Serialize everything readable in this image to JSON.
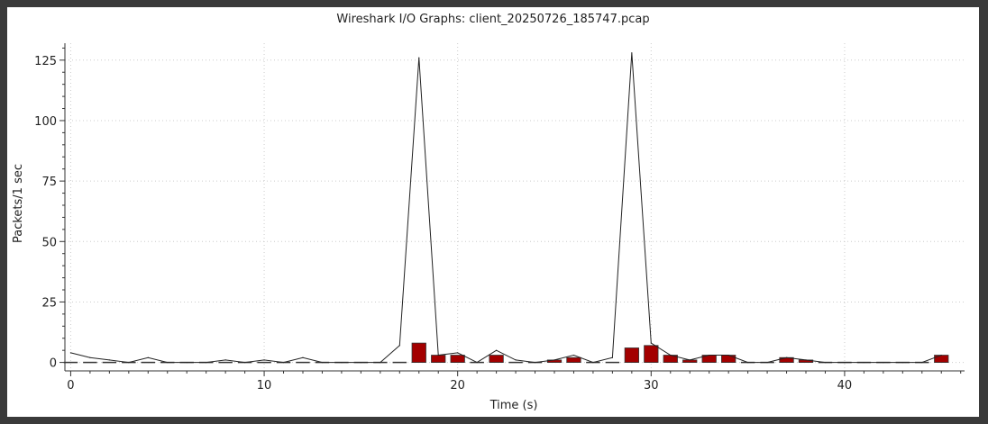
{
  "window": {
    "title": "Wireshark I/O Graphs: client_20250726_185747.pcap"
  },
  "chart_data": {
    "type": "line",
    "title": "Wireshark I/O Graphs: client_20250726_185747.pcap",
    "xlabel": "Time (s)",
    "ylabel": "Packets/1 sec",
    "xlim": [
      -0.3,
      46.2
    ],
    "ylim": [
      -3.5,
      132
    ],
    "x_ticks": [
      0,
      10,
      20,
      30,
      40
    ],
    "y_ticks": [
      0,
      25,
      50,
      75,
      100,
      125
    ],
    "grid": true,
    "legend": "none",
    "series": [
      {
        "type": "line",
        "color": "#222222",
        "x": [
          0,
          1,
          2,
          3,
          4,
          5,
          6,
          7,
          8,
          9,
          10,
          11,
          12,
          13,
          14,
          15,
          16,
          17,
          18,
          19,
          20,
          21,
          22,
          23,
          24,
          25,
          26,
          27,
          28,
          29,
          30,
          31,
          32,
          33,
          34,
          35,
          36,
          37,
          38,
          39,
          40,
          41,
          42,
          43,
          44,
          45
        ],
        "values": [
          4,
          2,
          1,
          0,
          2,
          0,
          0,
          0,
          1,
          0,
          1,
          0,
          2,
          0,
          0,
          0,
          0,
          7,
          126,
          3,
          4,
          0,
          5,
          1,
          0,
          1,
          3,
          0,
          2,
          128,
          8,
          3,
          1,
          3,
          3,
          0,
          0,
          2,
          1,
          0,
          0,
          0,
          0,
          0,
          0,
          3
        ]
      },
      {
        "type": "bar",
        "color": "#a30000",
        "x": [
          0,
          1,
          2,
          3,
          4,
          5,
          6,
          7,
          8,
          9,
          10,
          11,
          12,
          13,
          14,
          15,
          16,
          17,
          18,
          19,
          20,
          21,
          22,
          23,
          24,
          25,
          26,
          27,
          28,
          29,
          30,
          31,
          32,
          33,
          34,
          35,
          36,
          37,
          38,
          39,
          40,
          41,
          42,
          43,
          44,
          45
        ],
        "values": [
          0,
          0,
          0,
          0,
          0,
          0,
          0,
          0,
          0,
          0,
          0,
          0,
          0,
          0,
          0,
          0,
          0,
          0,
          8,
          3,
          3,
          0,
          3,
          0,
          0,
          1,
          2,
          0,
          0,
          6,
          7,
          3,
          1,
          3,
          3,
          0,
          0,
          2,
          1,
          0,
          0,
          0,
          0,
          0,
          0,
          3
        ]
      }
    ]
  }
}
